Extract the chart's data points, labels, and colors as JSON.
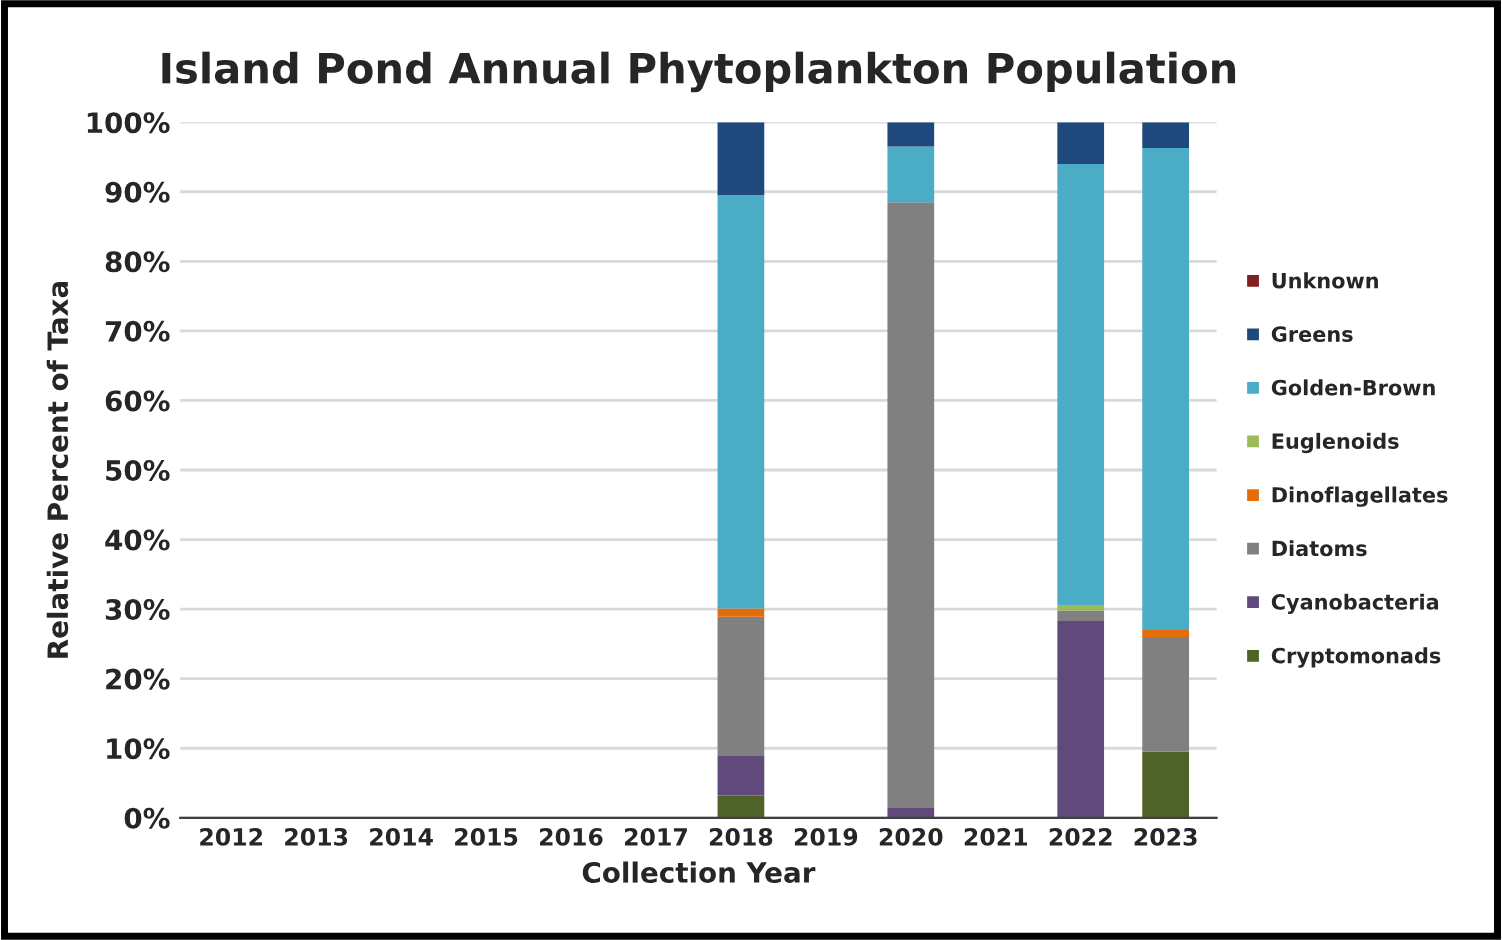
{
  "chart_data": {
    "type": "bar",
    "stacked": true,
    "title": "Island Pond Annual Phytoplankton Population",
    "xlabel": "Collection Year",
    "ylabel": "Relative Percent of Taxa",
    "categories": [
      "2012",
      "2013",
      "2014",
      "2015",
      "2016",
      "2017",
      "2018",
      "2019",
      "2020",
      "2021",
      "2022",
      "2023"
    ],
    "series": [
      {
        "name": "Cryptomonads",
        "color": "#4f6228",
        "values": [
          null,
          null,
          null,
          null,
          null,
          null,
          3.2,
          null,
          0,
          null,
          0,
          9.5
        ]
      },
      {
        "name": "Cyanobacteria",
        "color": "#604a7b",
        "values": [
          null,
          null,
          null,
          null,
          null,
          null,
          5.8,
          null,
          1.5,
          null,
          28.3,
          0
        ]
      },
      {
        "name": "Diatoms",
        "color": "#808080",
        "values": [
          null,
          null,
          null,
          null,
          null,
          null,
          19.9,
          null,
          87,
          null,
          1.5,
          16.5
        ]
      },
      {
        "name": "Dinoflagellates",
        "color": "#e46c0a",
        "values": [
          null,
          null,
          null,
          null,
          null,
          null,
          1.2,
          null,
          0,
          null,
          0,
          1
        ]
      },
      {
        "name": "Euglenoids",
        "color": "#9bbb59",
        "values": [
          null,
          null,
          null,
          null,
          null,
          null,
          0,
          null,
          0,
          null,
          0.7,
          0
        ]
      },
      {
        "name": "Golden-Brown",
        "color": "#4bacc6",
        "values": [
          null,
          null,
          null,
          null,
          null,
          null,
          59.4,
          null,
          8,
          null,
          63.5,
          69.3
        ]
      },
      {
        "name": "Greens",
        "color": "#1f497d",
        "values": [
          null,
          null,
          null,
          null,
          null,
          null,
          10.5,
          null,
          3.5,
          null,
          6,
          3.7
        ]
      },
      {
        "name": "Unknown",
        "color": "#7f1f1f",
        "values": [
          null,
          null,
          null,
          null,
          null,
          null,
          0,
          null,
          0,
          null,
          0,
          0
        ]
      }
    ],
    "ylim": [
      0,
      100
    ],
    "yticks": [
      {
        "value": 0,
        "label": "0%"
      },
      {
        "value": 10,
        "label": "10%"
      },
      {
        "value": 20,
        "label": "20%"
      },
      {
        "value": 30,
        "label": "30%"
      },
      {
        "value": 40,
        "label": "40%"
      },
      {
        "value": 50,
        "label": "50%"
      },
      {
        "value": 60,
        "label": "60%"
      },
      {
        "value": 70,
        "label": "70%"
      },
      {
        "value": 80,
        "label": "80%"
      },
      {
        "value": 90,
        "label": "90%"
      },
      {
        "value": 100,
        "label": "100%"
      }
    ],
    "grid": "y",
    "legend": "right"
  }
}
